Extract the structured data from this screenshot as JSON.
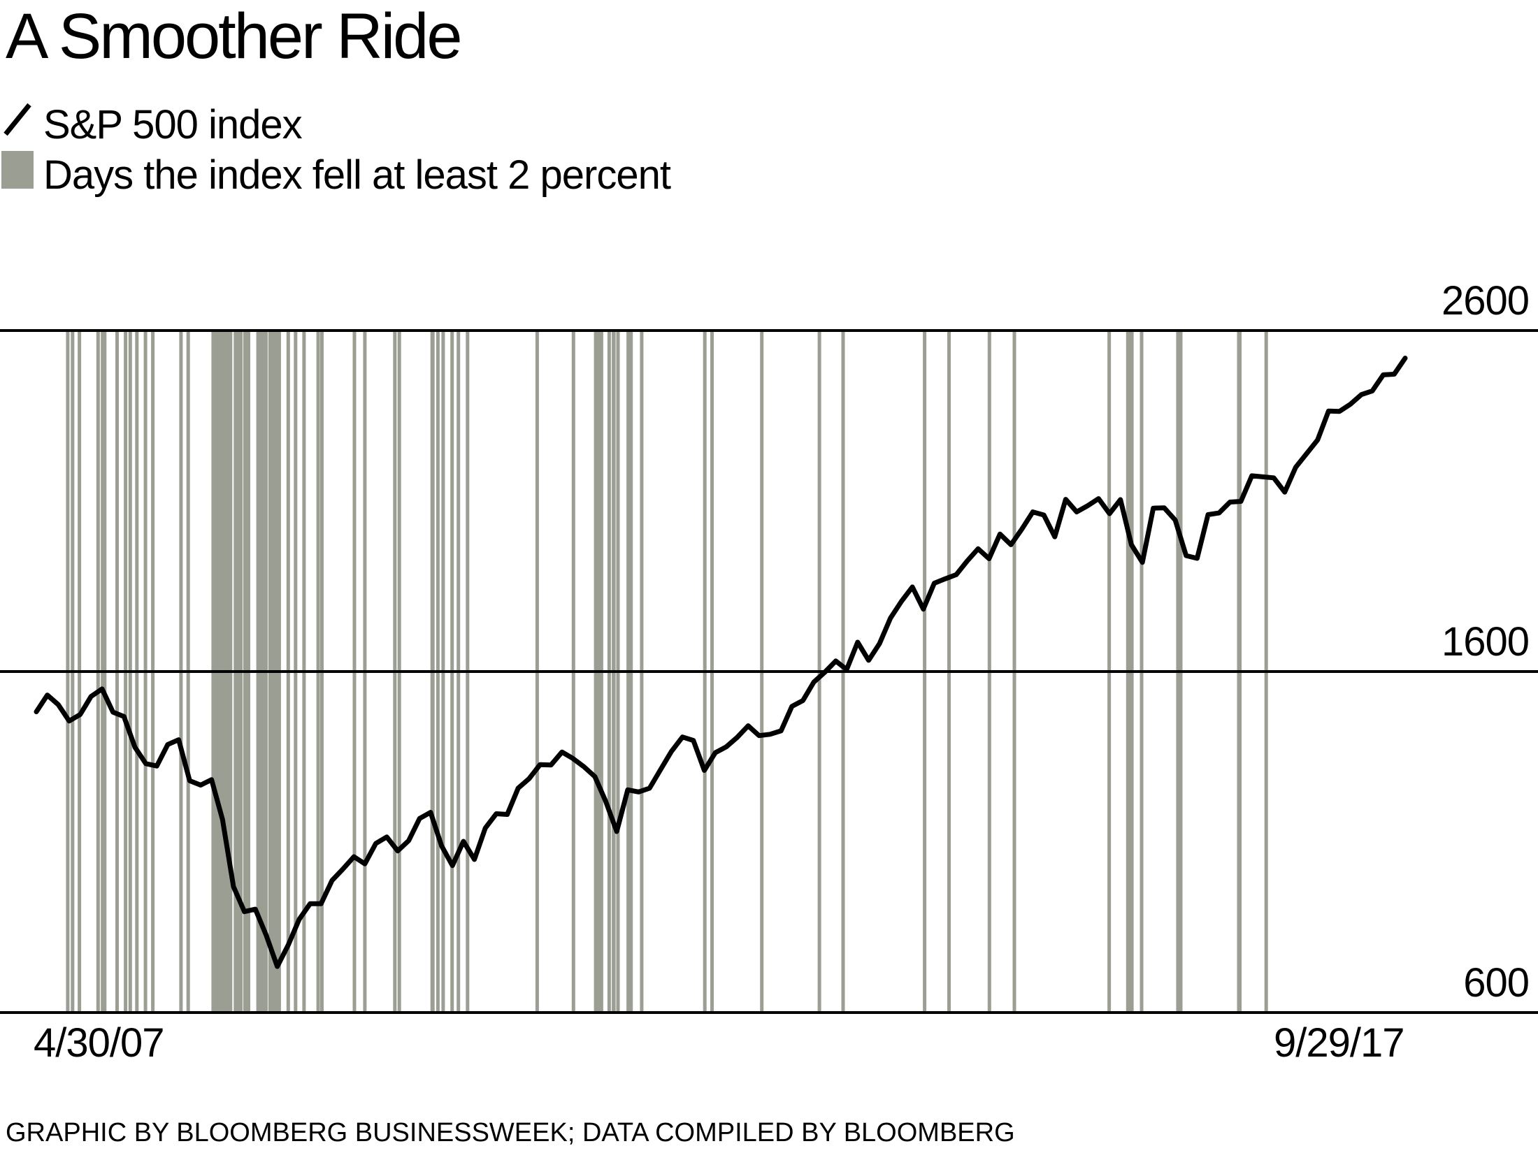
{
  "header": {
    "title": "A Smoother Ride"
  },
  "legend": {
    "line_label": "S&P 500 index",
    "bars_label": "Days the index fell at least 2 percent"
  },
  "axes": {
    "y_ticks": [
      "2600",
      "1600",
      "600"
    ],
    "x_left": "4/30/07",
    "x_right": "9/29/17"
  },
  "footer": {
    "credit": "GRAPHIC BY BLOOMBERG BUSINESSWEEK; DATA COMPILED BY BLOOMBERG"
  },
  "colors": {
    "background": "#ffffff",
    "line": "#000000",
    "grid": "#000000",
    "bar": "#9b9e92",
    "text": "#000000"
  },
  "chart_data": {
    "type": "line",
    "title": "A Smoother Ride",
    "xlabel": "",
    "ylabel": "",
    "x_range": {
      "start": "4/30/07",
      "end": "9/29/17"
    },
    "y_gridlines": [
      2600,
      1600,
      600
    ],
    "ylim": [
      600,
      2600
    ],
    "grid": "horizontal-only",
    "legend_position": "top-left",
    "series": [
      {
        "name": "S&P 500 index",
        "interval": "monthly",
        "start": "2007-04-30",
        "end": "2017-09-29",
        "values": [
          1482,
          1531,
          1503,
          1455,
          1474,
          1527,
          1549,
          1481,
          1468,
          1378,
          1330,
          1323,
          1386,
          1400,
          1280,
          1267,
          1283,
          1166,
          969,
          896,
          903,
          826,
          735,
          798,
          873,
          919,
          919,
          987,
          1021,
          1057,
          1036,
          1096,
          1115,
          1074,
          1104,
          1169,
          1187,
          1089,
          1031,
          1102,
          1049,
          1141,
          1183,
          1181,
          1258,
          1286,
          1327,
          1326,
          1364,
          1345,
          1321,
          1292,
          1219,
          1131,
          1253,
          1247,
          1258,
          1312,
          1366,
          1408,
          1398,
          1310,
          1362,
          1379,
          1407,
          1441,
          1412,
          1416,
          1426,
          1498,
          1515,
          1569,
          1598,
          1631,
          1606,
          1686,
          1633,
          1682,
          1757,
          1806,
          1848,
          1783,
          1859,
          1872,
          1884,
          1924,
          1960,
          1931,
          2003,
          1972,
          2018,
          2068,
          2059,
          1995,
          2105,
          2068,
          2086,
          2107,
          2063,
          2104,
          1972,
          1920,
          2079,
          2080,
          2044,
          1940,
          1932,
          2060,
          2065,
          2097,
          2099,
          2174,
          2171,
          2168,
          2126,
          2199,
          2239,
          2279,
          2364,
          2363,
          2384,
          2412,
          2423,
          2470,
          2472,
          2519
        ]
      }
    ],
    "down_days": {
      "label": "Days the index fell at least 2 percent",
      "dates": [
        "2007-07-26",
        "2007-08-09",
        "2007-08-28",
        "2007-10-19",
        "2007-11-01",
        "2007-11-07",
        "2007-12-11",
        "2008-01-04",
        "2008-01-17",
        "2008-02-05",
        "2008-02-29",
        "2008-03-19",
        "2008-06-06",
        "2008-06-26",
        "2008-09-04",
        "2008-09-09",
        "2008-09-15",
        "2008-09-17",
        "2008-09-22",
        "2008-09-29",
        "2008-10-02",
        "2008-10-06",
        "2008-10-07",
        "2008-10-09",
        "2008-10-15",
        "2008-10-21",
        "2008-10-22",
        "2008-11-05",
        "2008-11-06",
        "2008-11-11",
        "2008-11-12",
        "2008-11-14",
        "2008-11-19",
        "2008-11-20",
        "2008-12-01",
        "2008-12-04",
        "2008-12-11",
        "2009-01-07",
        "2009-01-12",
        "2009-01-14",
        "2009-01-20",
        "2009-01-29",
        "2009-02-10",
        "2009-02-17",
        "2009-02-23",
        "2009-03-02",
        "2009-03-05",
        "2009-03-30",
        "2009-04-20",
        "2009-05-13",
        "2009-06-22",
        "2009-07-02",
        "2009-10-01",
        "2009-10-30",
        "2010-01-22",
        "2010-02-04",
        "2010-05-04",
        "2010-05-06",
        "2010-05-20",
        "2010-06-04",
        "2010-06-29",
        "2010-07-16",
        "2010-08-11",
        "2011-02-22",
        "2011-06-01",
        "2011-08-02",
        "2011-08-04",
        "2011-08-08",
        "2011-08-10",
        "2011-08-18",
        "2011-09-09",
        "2011-09-21",
        "2011-09-22",
        "2011-10-03",
        "2011-11-01",
        "2011-11-09",
        "2011-12-08",
        "2012-06-01",
        "2012-06-21",
        "2012-11-07",
        "2013-04-15",
        "2013-06-20",
        "2014-02-03",
        "2014-04-10",
        "2014-07-31",
        "2014-10-09",
        "2015-06-29",
        "2015-08-20",
        "2015-08-21",
        "2015-08-24",
        "2015-09-01",
        "2015-09-28",
        "2016-01-07",
        "2016-01-13",
        "2016-01-15",
        "2016-06-24",
        "2016-06-27",
        "2016-09-09"
      ]
    }
  }
}
